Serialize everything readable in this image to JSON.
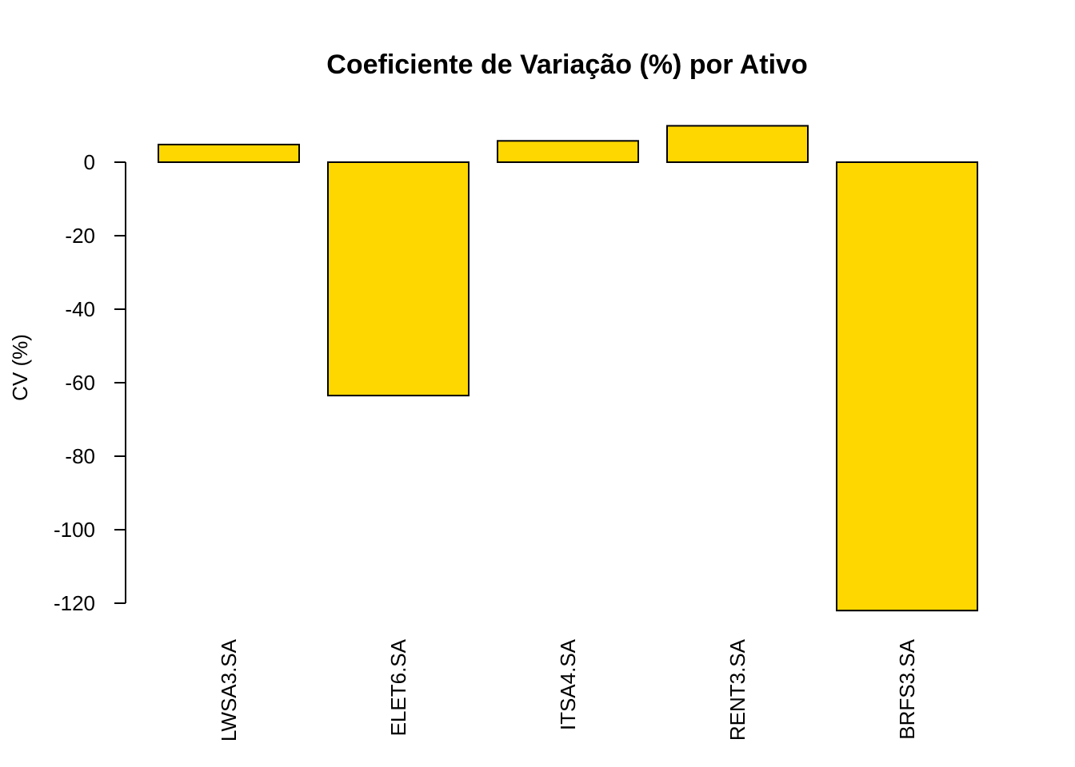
{
  "chart_data": {
    "type": "bar",
    "title": "Coeficiente de Variação (%) por Ativo",
    "xlabel": "",
    "ylabel": "CV (%)",
    "categories": [
      "LWSA3.SA",
      "ELET6.SA",
      "ITSA4.SA",
      "RENT3.SA",
      "BRFS3.SA"
    ],
    "values": [
      4.8,
      -63.5,
      5.8,
      9.9,
      -122.0
    ],
    "ylim": [
      -120,
      0
    ],
    "yticks": [
      0,
      -20,
      -40,
      -60,
      -80,
      -100,
      -120
    ],
    "bar_color": "#FFD700",
    "grid": false,
    "legend": "none"
  }
}
